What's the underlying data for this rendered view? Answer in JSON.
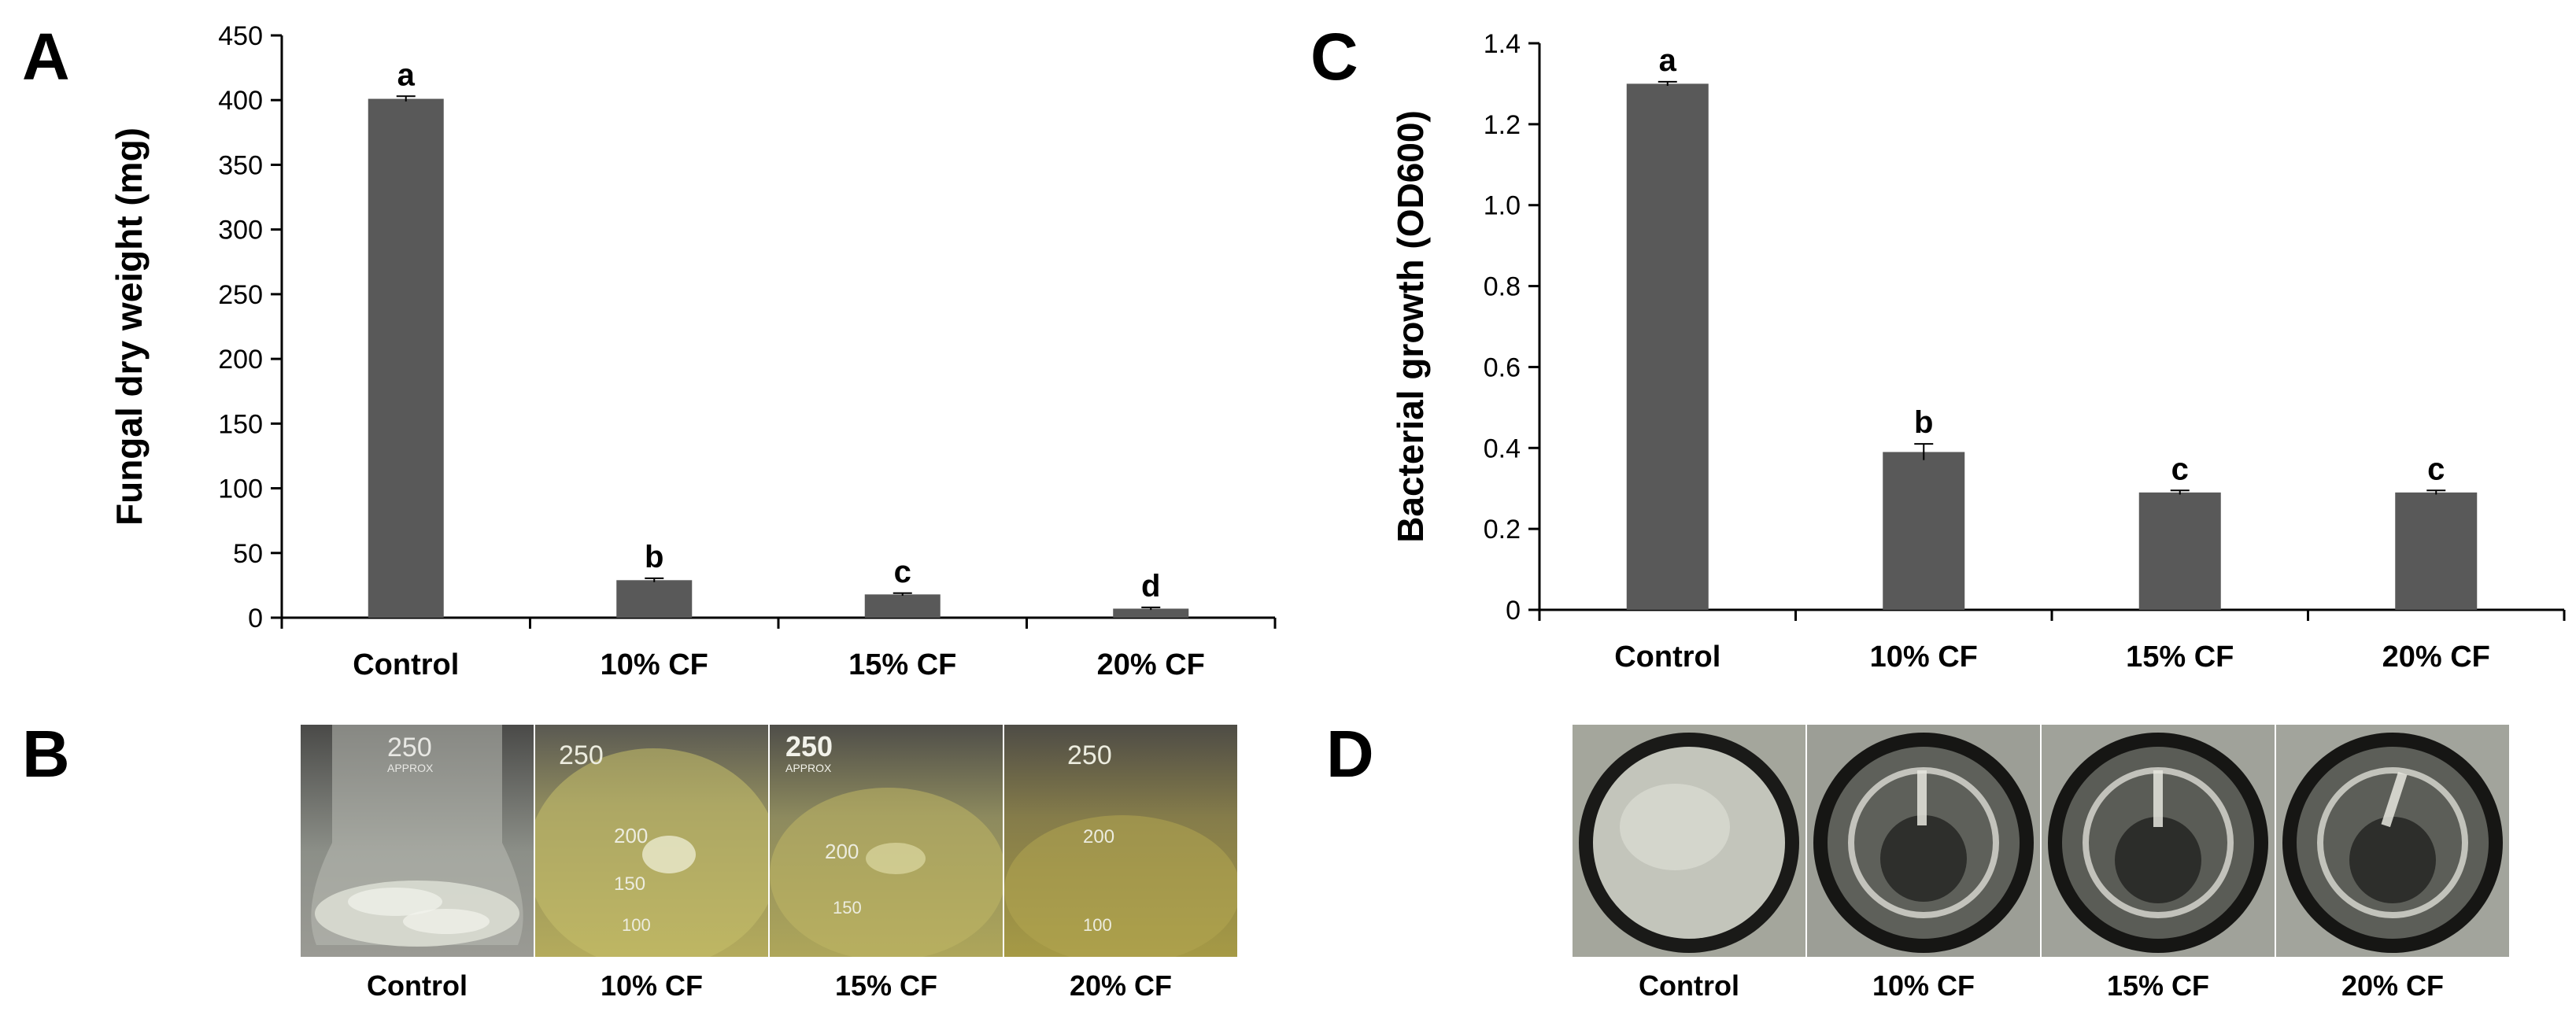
{
  "panels": {
    "a": "A",
    "b": "B",
    "c": "C",
    "d": "D"
  },
  "chart_data": [
    {
      "type": "bar",
      "panel": "A",
      "title": "",
      "xlabel": "",
      "ylabel": "Fungal dry weight (mg)",
      "categories": [
        "Control",
        "10% CF",
        "15% CF",
        "20% CF"
      ],
      "values": [
        401,
        29,
        18,
        7
      ],
      "errors": [
        2,
        1.5,
        1,
        1
      ],
      "letters": [
        "a",
        "b",
        "c",
        "d"
      ],
      "ylim": [
        0,
        450
      ],
      "yticks": [
        "0",
        "50",
        "100",
        "150",
        "200",
        "250",
        "300",
        "350",
        "400",
        "450"
      ],
      "bar_color": "#595959",
      "grid": false
    },
    {
      "type": "bar",
      "panel": "C",
      "title": "",
      "xlabel": "",
      "ylabel": "Bacterial growth (OD600)",
      "categories": [
        "Control",
        "10% CF",
        "15% CF",
        "20% CF"
      ],
      "values": [
        1.3,
        0.39,
        0.29,
        0.29
      ],
      "errors": [
        0.005,
        0.02,
        0.005,
        0.005
      ],
      "letters": [
        "a",
        "b",
        "c",
        "c"
      ],
      "ylim": [
        0,
        1.4
      ],
      "yticks": [
        "0",
        "0.2",
        "0.4",
        "0.6",
        "0.8",
        "1.0",
        "1.2",
        "1.4"
      ],
      "bar_color": "#595959",
      "grid": false
    }
  ],
  "photos": {
    "flasks": {
      "captions": [
        "Control",
        "10% CF",
        "15% CF",
        "20% CF"
      ],
      "labels": [
        [
          "250",
          "APPROX"
        ],
        [
          "250",
          "200",
          "150",
          "100"
        ],
        [
          "250",
          "APPROX",
          "200",
          "150"
        ],
        [
          "250",
          "200",
          "100"
        ]
      ]
    },
    "wells": {
      "captions": [
        "Control",
        "10% CF",
        "15% CF",
        "20% CF"
      ]
    }
  }
}
